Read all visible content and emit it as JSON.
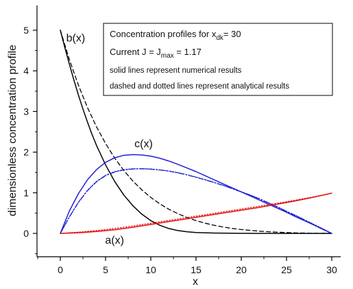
{
  "chart_data": {
    "type": "line",
    "xlabel": "x",
    "ylabel": "dimensionless concentration profile",
    "xlim": [
      -3,
      31
    ],
    "ylim": [
      -0.55,
      5.25
    ],
    "xticks": [
      0,
      5,
      10,
      15,
      20,
      25,
      30
    ],
    "yticks": [
      0,
      1,
      2,
      3,
      4,
      5
    ],
    "grid": false,
    "info_box": {
      "line1_prefix": "Concentration profiles for x",
      "line1_sub": "dk",
      "line1_suffix": "= 30",
      "line2_prefix": "Current J =  J",
      "line2_sub": "max",
      "line2_suffix": " = 1.17",
      "line3": "solid lines represent numerical results",
      "line4": "dashed and dotted lines represent analytical results"
    },
    "curve_labels": [
      {
        "text": "b(x)",
        "x": 1.7,
        "y": 4.72
      },
      {
        "text": "c(x)",
        "x": 9.2,
        "y": 2.12
      },
      {
        "text": "a(x)",
        "x": 6.0,
        "y": -0.25
      }
    ],
    "series": [
      {
        "name": "b(x)",
        "style": "solid",
        "color": "#000000",
        "x": [
          0,
          0.5,
          1,
          1.5,
          2,
          2.5,
          3,
          3.5,
          4,
          5,
          6,
          7,
          8,
          9,
          10,
          11,
          12,
          13,
          14,
          15,
          17,
          20,
          25,
          30
        ],
        "y": [
          5.0,
          4.575,
          4.165,
          3.775,
          3.405,
          3.06,
          2.74,
          2.44,
          2.165,
          1.685,
          1.28,
          0.95,
          0.685,
          0.475,
          0.315,
          0.2,
          0.12,
          0.07,
          0.04,
          0.022,
          0.008,
          0.002,
          0.0,
          0.0
        ]
      },
      {
        "name": "b(x) analytical",
        "style": "dashed",
        "color": "#000000",
        "x": [
          0,
          1,
          2,
          3,
          4,
          5,
          6,
          7,
          8,
          9,
          10,
          11,
          12,
          13,
          14,
          15,
          16,
          17,
          18,
          19,
          20,
          22,
          24,
          26,
          28,
          30
        ],
        "y": [
          5.0,
          4.278,
          3.648,
          3.098,
          2.624,
          2.212,
          1.857,
          1.553,
          1.293,
          1.072,
          0.885,
          0.727,
          0.595,
          0.484,
          0.392,
          0.315,
          0.252,
          0.2,
          0.157,
          0.122,
          0.094,
          0.054,
          0.028,
          0.012,
          0.004,
          0.0
        ]
      },
      {
        "name": "c(x)",
        "style": "solid",
        "color": "#1f1fd6",
        "x": [
          0,
          1,
          2,
          3,
          4,
          5,
          6,
          7,
          8,
          9,
          10,
          11,
          12,
          13,
          14,
          15,
          16,
          17,
          18,
          19,
          20,
          21,
          22,
          23,
          24,
          25,
          26,
          27,
          28,
          29,
          30
        ],
        "y": [
          0.0,
          0.55,
          0.98,
          1.32,
          1.57,
          1.75,
          1.86,
          1.92,
          1.94,
          1.93,
          1.9,
          1.85,
          1.78,
          1.7,
          1.61,
          1.52,
          1.42,
          1.32,
          1.22,
          1.12,
          1.02,
          0.92,
          0.82,
          0.72,
          0.62,
          0.52,
          0.41,
          0.31,
          0.21,
          0.1,
          0.0
        ]
      },
      {
        "name": "c(x) analytical (dash-dot)",
        "style": "dashdot",
        "color": "#1f1fd6",
        "x": [
          0,
          1,
          2,
          3,
          4,
          5,
          6,
          7,
          8,
          9,
          10,
          11,
          12,
          13,
          14,
          15,
          16,
          17,
          18,
          19,
          20,
          21,
          22,
          23,
          24,
          25,
          26,
          27,
          28,
          29,
          30
        ],
        "y": [
          0.0,
          0.4,
          0.76,
          1.05,
          1.27,
          1.42,
          1.51,
          1.56,
          1.585,
          1.59,
          1.58,
          1.56,
          1.53,
          1.49,
          1.44,
          1.38,
          1.32,
          1.25,
          1.18,
          1.1,
          1.02,
          0.94,
          0.85,
          0.75,
          0.65,
          0.54,
          0.44,
          0.33,
          0.22,
          0.11,
          0.0
        ]
      },
      {
        "name": "c(x) analytical (dotted)",
        "style": "dotted",
        "color": "#1f1fd6",
        "x": [
          0,
          1,
          2,
          3,
          4,
          5,
          6,
          7,
          8,
          9,
          10,
          11,
          12,
          13,
          14,
          15,
          16,
          17,
          18,
          19,
          20,
          21,
          22,
          23,
          24,
          25,
          26,
          27,
          28,
          29,
          30
        ],
        "y": [
          0.0,
          0.41,
          0.77,
          1.06,
          1.28,
          1.43,
          1.52,
          1.57,
          1.59,
          1.595,
          1.585,
          1.565,
          1.535,
          1.495,
          1.445,
          1.385,
          1.325,
          1.255,
          1.185,
          1.105,
          1.025,
          0.945,
          0.855,
          0.755,
          0.655,
          0.545,
          0.445,
          0.335,
          0.225,
          0.115,
          0.0
        ]
      },
      {
        "name": "a(x)",
        "style": "solid",
        "color": "#e01010",
        "x": [
          0,
          2,
          4,
          6,
          8,
          10,
          12,
          14,
          16,
          18,
          20,
          22,
          24,
          26,
          28,
          30
        ],
        "y": [
          0.0,
          0.015,
          0.045,
          0.09,
          0.15,
          0.22,
          0.29,
          0.36,
          0.43,
          0.5,
          0.57,
          0.64,
          0.72,
          0.8,
          0.89,
          0.99
        ]
      },
      {
        "name": "a(x) analytical",
        "style": "dotted",
        "color": "#e01010",
        "x": [
          0,
          2,
          4,
          6,
          8,
          10,
          12,
          14,
          16,
          18,
          20,
          22,
          24,
          26,
          28,
          30
        ],
        "y": [
          0.0,
          0.03,
          0.07,
          0.12,
          0.18,
          0.25,
          0.32,
          0.39,
          0.46,
          0.53,
          0.6,
          0.67,
          0.74,
          0.82,
          0.9,
          0.99
        ]
      }
    ]
  }
}
